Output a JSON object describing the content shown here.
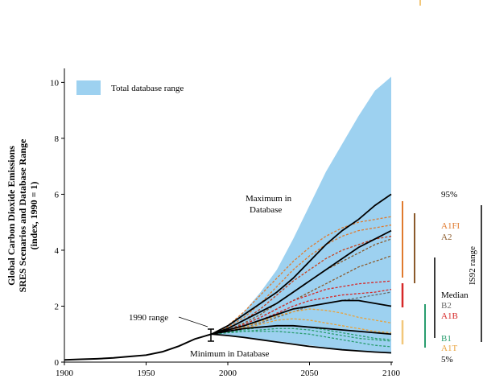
{
  "chart_data": {
    "type": "line",
    "title": "",
    "xlabel": "",
    "ylabel_lines": [
      "Global Carbon Dioxide Emissions",
      "SRES Scenarios and Database Range",
      "(index, 1990 = 1)"
    ],
    "xlim": [
      1900,
      2100
    ],
    "ylim": [
      0,
      10.5
    ],
    "x_ticks": [
      1900,
      1950,
      2000,
      2050,
      2100
    ],
    "y_ticks": [
      0,
      2,
      4,
      6,
      8,
      10
    ],
    "legend": {
      "label": "Total database range",
      "position": "top-left",
      "color": "#9dd1f0"
    },
    "database_range": {
      "x": [
        1990,
        2000,
        2010,
        2020,
        2030,
        2040,
        2050,
        2060,
        2070,
        2080,
        2090,
        2100
      ],
      "max": [
        1.0,
        1.3,
        1.8,
        2.5,
        3.3,
        4.4,
        5.6,
        6.8,
        7.8,
        8.8,
        9.7,
        10.2
      ],
      "min": [
        1.0,
        0.95,
        0.9,
        0.82,
        0.75,
        0.67,
        0.6,
        0.52,
        0.45,
        0.4,
        0.35,
        0.3
      ]
    },
    "history": {
      "x": [
        1900,
        1910,
        1920,
        1930,
        1940,
        1950,
        1960,
        1970,
        1980,
        1990
      ],
      "y": [
        0.08,
        0.1,
        0.12,
        0.15,
        0.2,
        0.25,
        0.37,
        0.57,
        0.83,
        1.0
      ]
    },
    "scenarios": [
      {
        "color": "#e07a2e",
        "dash": true,
        "y": [
          1.0,
          1.3,
          1.8,
          2.4,
          3.0,
          3.6,
          4.1,
          4.5,
          4.8,
          5.0,
          5.1,
          5.2
        ]
      },
      {
        "color": "#e07a2e",
        "dash": true,
        "y": [
          1.0,
          1.25,
          1.6,
          2.1,
          2.7,
          3.3,
          3.8,
          4.2,
          4.5,
          4.7,
          4.8,
          4.9
        ]
      },
      {
        "color": "#c8401a",
        "dash": true,
        "y": [
          1.0,
          1.2,
          1.5,
          1.9,
          2.4,
          2.9,
          3.3,
          3.7,
          4.0,
          4.2,
          4.4,
          4.5
        ]
      },
      {
        "color": "#8b5a2b",
        "dash": true,
        "y": [
          1.0,
          1.15,
          1.4,
          1.7,
          2.1,
          2.5,
          2.9,
          3.3,
          3.6,
          3.9,
          4.2,
          4.4
        ]
      },
      {
        "color": "#8b5a2b",
        "dash": true,
        "y": [
          1.0,
          1.15,
          1.35,
          1.6,
          1.9,
          2.2,
          2.5,
          2.8,
          3.1,
          3.4,
          3.6,
          3.8
        ]
      },
      {
        "color": "#d62828",
        "dash": true,
        "y": [
          1.0,
          1.15,
          1.35,
          1.6,
          1.9,
          2.2,
          2.4,
          2.6,
          2.7,
          2.8,
          2.85,
          2.9
        ]
      },
      {
        "color": "#d62828",
        "dash": true,
        "y": [
          1.0,
          1.1,
          1.3,
          1.5,
          1.75,
          2.0,
          2.2,
          2.3,
          2.4,
          2.45,
          2.5,
          2.6
        ]
      },
      {
        "color": "#6a6a6a",
        "dash": true,
        "y": [
          1.0,
          1.1,
          1.25,
          1.4,
          1.6,
          1.8,
          2.0,
          2.1,
          2.2,
          2.3,
          2.4,
          2.5
        ]
      },
      {
        "color": "#e9a23b",
        "dash": true,
        "y": [
          1.0,
          1.1,
          1.25,
          1.45,
          1.65,
          1.8,
          1.9,
          1.85,
          1.75,
          1.6,
          1.5,
          1.4
        ]
      },
      {
        "color": "#e9a23b",
        "dash": true,
        "y": [
          1.0,
          1.1,
          1.2,
          1.35,
          1.5,
          1.55,
          1.5,
          1.4,
          1.3,
          1.2,
          1.1,
          1.05
        ]
      },
      {
        "color": "#2a9d6f",
        "dash": true,
        "y": [
          1.0,
          1.08,
          1.15,
          1.25,
          1.3,
          1.3,
          1.25,
          1.15,
          1.05,
          0.95,
          0.85,
          0.8
        ]
      },
      {
        "color": "#2a9d6f",
        "dash": true,
        "y": [
          1.0,
          1.05,
          1.1,
          1.15,
          1.2,
          1.2,
          1.15,
          1.05,
          0.95,
          0.85,
          0.8,
          0.75
        ]
      },
      {
        "color": "#2a9d6f",
        "dash": true,
        "y": [
          1.0,
          1.05,
          1.1,
          1.1,
          1.1,
          1.05,
          1.0,
          0.9,
          0.8,
          0.7,
          0.6,
          0.55
        ]
      },
      {
        "color": "#000000",
        "dash": false,
        "y": [
          1.0,
          1.3,
          1.7,
          2.1,
          2.5,
          3.0,
          3.6,
          4.2,
          4.7,
          5.1,
          5.6,
          6.0
        ]
      },
      {
        "color": "#000000",
        "dash": false,
        "y": [
          1.0,
          1.2,
          1.5,
          1.8,
          2.1,
          2.5,
          2.9,
          3.3,
          3.7,
          4.1,
          4.4,
          4.7
        ]
      },
      {
        "color": "#000000",
        "dash": false,
        "y": [
          1.0,
          1.15,
          1.3,
          1.5,
          1.7,
          1.9,
          2.0,
          2.1,
          2.2,
          2.2,
          2.1,
          2.0
        ]
      },
      {
        "color": "#000000",
        "dash": false,
        "y": [
          1.0,
          1.1,
          1.2,
          1.25,
          1.3,
          1.3,
          1.25,
          1.2,
          1.15,
          1.1,
          1.05,
          1.0
        ]
      },
      {
        "color": "#000000",
        "dash": false,
        "y": [
          1.0,
          0.95,
          0.88,
          0.8,
          0.72,
          0.64,
          0.56,
          0.5,
          0.44,
          0.4,
          0.36,
          0.33
        ]
      }
    ],
    "annotations": {
      "maximum": [
        "Maximum in",
        "Database"
      ],
      "minimum": "Minimum in Database",
      "range_1990": "1990 range"
    },
    "side_labels": [
      {
        "text": "95%",
        "color": "#000000"
      },
      {
        "text": "A1FI",
        "color": "#e07a2e"
      },
      {
        "text": "A2",
        "color": "#8b5a2b"
      },
      {
        "text": "Median",
        "color": "#000000"
      },
      {
        "text": "B2",
        "color": "#6a6a6a"
      },
      {
        "text": "A1B",
        "color": "#d62828"
      },
      {
        "text": "B1",
        "color": "#2a9d6f"
      },
      {
        "text": "A1T",
        "color": "#e9a23b"
      },
      {
        "text": "5%",
        "color": "#000000"
      }
    ],
    "is92_label": "IS92 range"
  }
}
